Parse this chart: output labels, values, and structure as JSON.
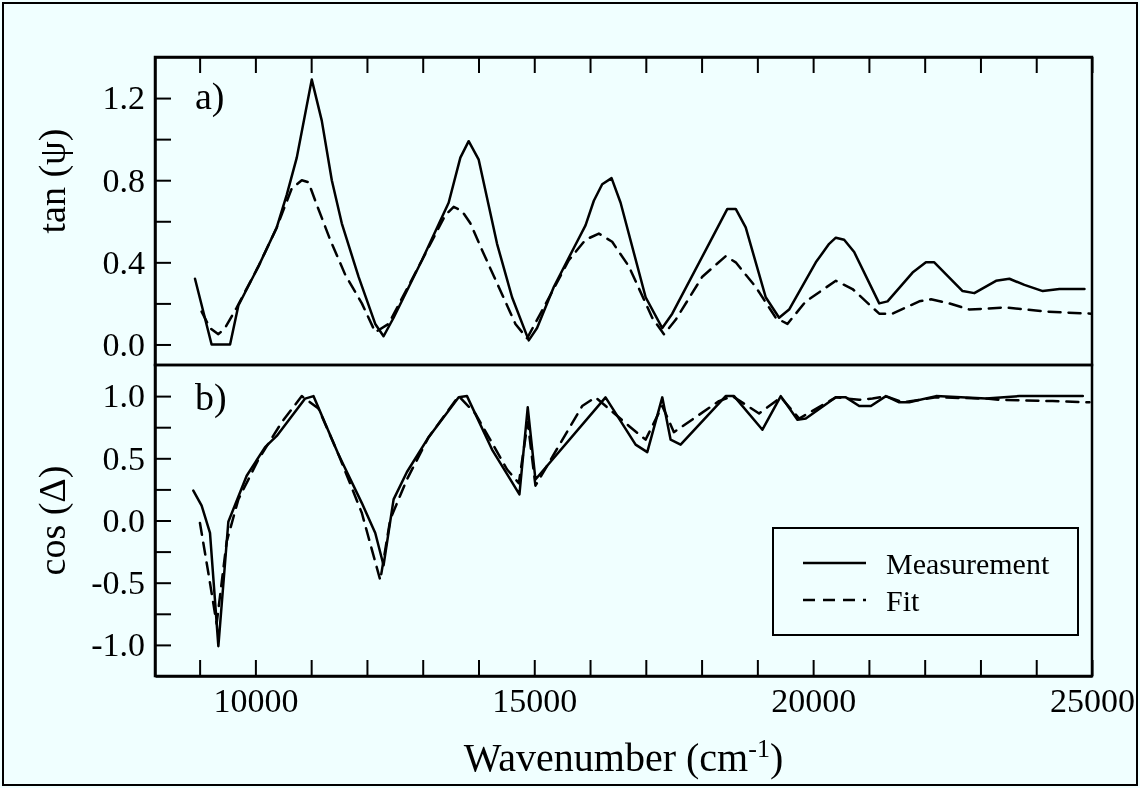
{
  "chart_data": [
    {
      "type": "line",
      "ylabel": "tan (ψ)",
      "annotations": [
        "a)"
      ],
      "xlim": [
        8200,
        25000
      ],
      "ylim": [
        -0.1,
        1.4
      ],
      "xticks": [
        {
          "value": 9000,
          "label": null
        },
        10000,
        {
          "value": 11000,
          "label": null
        },
        {
          "value": 12000,
          "label": null
        },
        {
          "value": 13000,
          "label": null
        },
        {
          "value": 14000,
          "label": null
        },
        15000,
        {
          "value": 16000,
          "label": null
        },
        {
          "value": 17000,
          "label": null
        },
        {
          "value": 18000,
          "label": null
        },
        {
          "value": 19000,
          "label": null
        },
        20000,
        {
          "value": 21000,
          "label": null
        },
        {
          "value": 22000,
          "label": null
        },
        {
          "value": 23000,
          "label": null
        },
        {
          "value": 24000,
          "label": null
        },
        25000
      ],
      "yticks": [
        {
          "value": 0,
          "label": "0.0"
        },
        {
          "value": 0.2,
          "label": null
        },
        {
          "value": 0.4,
          "label": "0.4"
        },
        {
          "value": 0.6,
          "label": null
        },
        {
          "value": 0.8,
          "label": "0.8"
        },
        {
          "value": 1.0,
          "label": null
        },
        {
          "value": 1.2,
          "label": "1.2"
        }
      ],
      "tick_labels": "y",
      "grid": false,
      "marker": "none",
      "series": [
        {
          "color": "#000000",
          "line_style": "solid",
          "x": [
            8917,
            9215,
            9546,
            9695,
            10054,
            10383,
            10563,
            10742,
            11011,
            11190,
            11370,
            11549,
            11849,
            12149,
            12298,
            12478,
            12986,
            13465,
            13675,
            13824,
            14004,
            14333,
            14602,
            14901,
            15050,
            15350,
            15709,
            15919,
            16068,
            16218,
            16386,
            16548,
            16997,
            17295,
            17474,
            18133,
            18462,
            18612,
            18791,
            19150,
            19390,
            19569,
            20048,
            20287,
            20407,
            20556,
            20736,
            21185,
            21334,
            21783,
            22022,
            22172,
            22680,
            22890,
            23279,
            23519,
            23788,
            24117,
            24416,
            24865
          ],
          "values": [
            0.32,
            0.0,
            0.0,
            0.19,
            0.38,
            0.57,
            0.73,
            0.91,
            1.29,
            1.09,
            0.8,
            0.59,
            0.33,
            0.1,
            0.04,
            0.13,
            0.41,
            0.69,
            0.91,
            0.99,
            0.9,
            0.49,
            0.23,
            0.02,
            0.08,
            0.28,
            0.47,
            0.58,
            0.7,
            0.78,
            0.81,
            0.69,
            0.23,
            0.08,
            0.15,
            0.49,
            0.66,
            0.66,
            0.57,
            0.23,
            0.13,
            0.17,
            0.4,
            0.49,
            0.52,
            0.51,
            0.45,
            0.2,
            0.21,
            0.35,
            0.4,
            0.4,
            0.26,
            0.25,
            0.31,
            0.32,
            0.29,
            0.26,
            0.27,
            0.27
          ]
        },
        {
          "color": "#000000",
          "line_style": "dashed",
          "x": [
            9036,
            9186,
            9336,
            9456,
            9665,
            10054,
            10383,
            10652,
            10832,
            10952,
            11101,
            11341,
            11610,
            11909,
            12149,
            12388,
            12986,
            13405,
            13555,
            13704,
            13854,
            14063,
            14363,
            14662,
            14871,
            15111,
            15619,
            15919,
            16158,
            16397,
            16697,
            17115,
            17325,
            17535,
            18013,
            18433,
            18612,
            18971,
            19330,
            19539,
            19869,
            20407,
            20706,
            21185,
            21424,
            21903,
            22113,
            22442,
            22801,
            23459,
            24177,
            24984
          ],
          "values": [
            0.16,
            0.08,
            0.05,
            0.08,
            0.18,
            0.38,
            0.57,
            0.76,
            0.8,
            0.79,
            0.68,
            0.51,
            0.34,
            0.2,
            0.06,
            0.1,
            0.41,
            0.63,
            0.67,
            0.65,
            0.59,
            0.46,
            0.28,
            0.1,
            0.03,
            0.15,
            0.41,
            0.51,
            0.54,
            0.5,
            0.38,
            0.13,
            0.05,
            0.12,
            0.33,
            0.43,
            0.4,
            0.28,
            0.13,
            0.1,
            0.21,
            0.31,
            0.27,
            0.15,
            0.15,
            0.21,
            0.22,
            0.2,
            0.17,
            0.18,
            0.16,
            0.15
          ]
        }
      ]
    },
    {
      "type": "line",
      "xlabel": "Wavenumber  (cm$^{-1}$)",
      "ylabel": "cos (Δ)",
      "annotations": [
        "b)"
      ],
      "xlim": [
        8200,
        25000
      ],
      "ylim": [
        -1.25,
        1.25
      ],
      "xticks": [
        {
          "value": 9000,
          "label": null
        },
        10000,
        {
          "value": 11000,
          "label": null
        },
        {
          "value": 12000,
          "label": null
        },
        {
          "value": 13000,
          "label": null
        },
        {
          "value": 14000,
          "label": null
        },
        15000,
        {
          "value": 16000,
          "label": null
        },
        {
          "value": 17000,
          "label": null
        },
        {
          "value": 18000,
          "label": null
        },
        {
          "value": 19000,
          "label": null
        },
        20000,
        {
          "value": 21000,
          "label": null
        },
        {
          "value": 22000,
          "label": null
        },
        {
          "value": 23000,
          "label": null
        },
        {
          "value": 24000,
          "label": null
        },
        25000
      ],
      "yticks": [
        {
          "value": -1,
          "label": "-1.0"
        },
        {
          "value": -0.75,
          "label": null
        },
        {
          "value": -0.5,
          "label": "-0.5"
        },
        {
          "value": -0.25,
          "label": null
        },
        {
          "value": 0,
          "label": "0.0"
        },
        {
          "value": 0.25,
          "label": null
        },
        {
          "value": 0.5,
          "label": "0.5"
        },
        {
          "value": 0.75,
          "label": null
        },
        {
          "value": 1,
          "label": "1.0"
        }
      ],
      "grid": false,
      "marker": "none",
      "legend": "bottom right",
      "series": [
        {
          "name": "Measurement",
          "color": "#000000",
          "line_style": "solid",
          "x": [
            8887,
            9036,
            9186,
            9336,
            9515,
            9844,
            10174,
            10383,
            10892,
            11041,
            11490,
            11909,
            12149,
            12298,
            12478,
            12717,
            13106,
            13645,
            13794,
            14243,
            14734,
            14883,
            15021,
            16278,
            16817,
            17026,
            17295,
            17445,
            17624,
            18432,
            18582,
            19091,
            19420,
            19719,
            19869,
            20407,
            20587,
            20826,
            21036,
            21305,
            21544,
            21724,
            22203,
            23101,
            23698,
            24835
          ],
          "values": [
            0.24,
            0.12,
            -0.1,
            -1.01,
            -0.01,
            0.36,
            0.59,
            0.68,
            0.98,
            1.0,
            0.53,
            0.14,
            -0.1,
            -0.36,
            0.17,
            0.39,
            0.67,
            0.99,
            1.0,
            0.57,
            0.21,
            0.91,
            0.33,
            0.99,
            0.61,
            0.55,
            0.99,
            0.65,
            0.61,
            1.0,
            1.0,
            0.73,
            1.0,
            0.81,
            0.82,
            0.99,
            0.99,
            0.92,
            0.92,
            1.0,
            0.95,
            0.95,
            1.0,
            0.98,
            1.0,
            1.0
          ]
        },
        {
          "name": "Fit",
          "color": "#000000",
          "line_style": "dashed",
          "x": [
            9006,
            9156,
            9305,
            9485,
            9695,
            10054,
            10473,
            10832,
            11131,
            11490,
            11909,
            12239,
            12418,
            12717,
            13106,
            13645,
            13944,
            14513,
            14723,
            14883,
            15021,
            15859,
            16098,
            16697,
            16996,
            17295,
            17504,
            18312,
            18552,
            19031,
            19420,
            19749,
            20407,
            20826,
            21065,
            21305,
            21604,
            22203,
            23101,
            23339,
            24296,
            24955
          ],
          "values": [
            -0.02,
            -0.42,
            -0.83,
            -0.17,
            0.17,
            0.49,
            0.79,
            1.0,
            0.9,
            0.53,
            0.06,
            -0.48,
            0.01,
            0.33,
            0.67,
            1.0,
            0.86,
            0.41,
            0.3,
            0.79,
            0.28,
            0.92,
            0.99,
            0.76,
            0.65,
            0.92,
            0.71,
            0.96,
            1.0,
            0.86,
            0.99,
            0.82,
            0.99,
            0.97,
            0.98,
            1.0,
            0.95,
            0.99,
            0.98,
            0.97,
            0.96,
            0.95
          ]
        }
      ]
    }
  ]
}
